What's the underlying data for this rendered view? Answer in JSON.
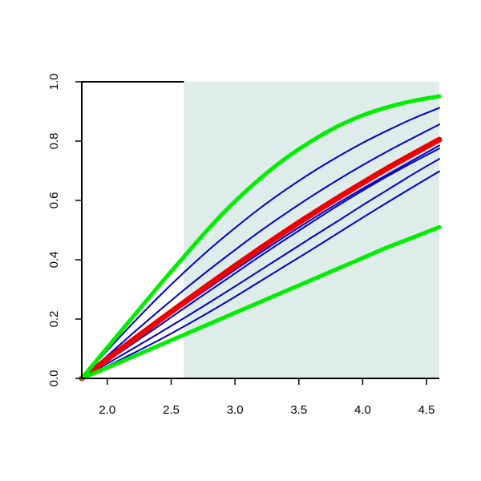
{
  "chart_data": {
    "type": "line",
    "title": "",
    "xlabel": "",
    "ylabel": "",
    "xlim": [
      1.8,
      4.6
    ],
    "ylim": [
      0.0,
      1.0
    ],
    "x_ticks": [
      2.0,
      2.5,
      3.0,
      3.5,
      4.0,
      4.5
    ],
    "x_tick_labels": [
      "2.0",
      "2.5",
      "3.0",
      "3.5",
      "4.0",
      "4.5"
    ],
    "y_ticks": [
      0.0,
      0.2,
      0.4,
      0.6,
      0.8,
      1.0
    ],
    "y_tick_labels": [
      "0.0",
      "0.2",
      "0.4",
      "0.6",
      "0.8",
      "1.0"
    ],
    "shaded_region": {
      "x_from": 2.6,
      "x_to": 4.6,
      "color": "#deecea"
    },
    "grid": false,
    "legend": "none",
    "x": [
      1.8,
      2.0,
      2.2,
      2.4,
      2.6,
      2.8,
      3.0,
      3.2,
      3.4,
      3.6,
      3.8,
      4.0,
      4.2,
      4.4,
      4.6
    ],
    "series": [
      {
        "color": "#0000cc",
        "width": 2,
        "values": [
          0.0,
          0.094,
          0.186,
          0.274,
          0.357,
          0.435,
          0.507,
          0.575,
          0.637,
          0.694,
          0.746,
          0.794,
          0.837,
          0.877,
          0.912
        ]
      },
      {
        "color": "#0000cc",
        "width": 2,
        "values": [
          0.0,
          0.076,
          0.152,
          0.226,
          0.298,
          0.367,
          0.433,
          0.497,
          0.557,
          0.614,
          0.668,
          0.719,
          0.767,
          0.812,
          0.856
        ]
      },
      {
        "color": "#0000cc",
        "width": 2,
        "values": [
          0.0,
          0.062,
          0.124,
          0.186,
          0.247,
          0.307,
          0.366,
          0.424,
          0.481,
          0.536,
          0.589,
          0.64,
          0.689,
          0.737,
          0.785
        ]
      },
      {
        "color": "#0000cc",
        "width": 2,
        "values": [
          0.0,
          0.058,
          0.117,
          0.176,
          0.236,
          0.295,
          0.354,
          0.413,
          0.47,
          0.526,
          0.581,
          0.633,
          0.683,
          0.73,
          0.775
        ]
      },
      {
        "color": "#0000cc",
        "width": 2,
        "values": [
          0.0,
          0.05,
          0.1,
          0.151,
          0.203,
          0.256,
          0.31,
          0.365,
          0.42,
          0.475,
          0.529,
          0.584,
          0.637,
          0.69,
          0.74
        ]
      },
      {
        "color": "#0000cc",
        "width": 2,
        "values": [
          0.0,
          0.041,
          0.084,
          0.128,
          0.175,
          0.224,
          0.275,
          0.328,
          0.381,
          0.434,
          0.488,
          0.542,
          0.595,
          0.647,
          0.698
        ]
      },
      {
        "color": "#ee0000",
        "width": 7,
        "values": [
          0.0,
          0.065,
          0.129,
          0.193,
          0.256,
          0.318,
          0.379,
          0.439,
          0.497,
          0.553,
          0.607,
          0.659,
          0.71,
          0.758,
          0.805
        ]
      },
      {
        "color": "#00ee00",
        "width": 5,
        "values": [
          0.0,
          0.104,
          0.207,
          0.31,
          0.41,
          0.508,
          0.597,
          0.675,
          0.743,
          0.8,
          0.849,
          0.887,
          0.915,
          0.936,
          0.951
        ]
      },
      {
        "color": "#00ee00",
        "width": 5,
        "values": [
          0.0,
          0.036,
          0.073,
          0.11,
          0.147,
          0.184,
          0.221,
          0.258,
          0.295,
          0.332,
          0.369,
          0.406,
          0.443,
          0.476,
          0.51
        ]
      }
    ]
  }
}
